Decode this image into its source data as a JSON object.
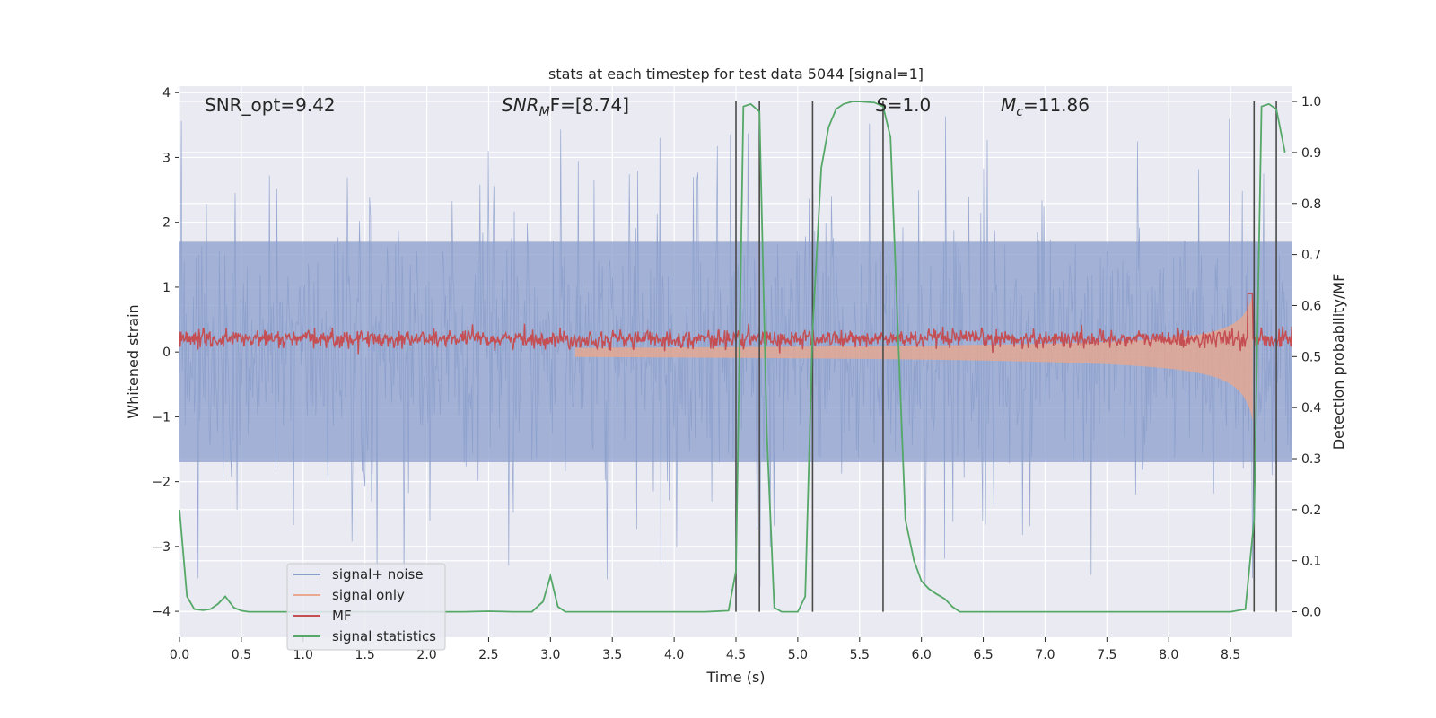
{
  "chart_data": {
    "type": "line",
    "title": "stats at each timestep for test data 5044 [signal=1]",
    "xlabel": "Time (s)",
    "ylabel_left": "Whitened strain",
    "ylabel_right": "Detection probability/MF",
    "xlim": [
      0.0,
      9.0
    ],
    "ylim_left": [
      -4.4,
      4.1
    ],
    "ylim_right": [
      -0.05,
      1.03
    ],
    "x_ticks": [
      0.0,
      0.5,
      1.0,
      1.5,
      2.0,
      2.5,
      3.0,
      3.5,
      4.0,
      4.5,
      5.0,
      5.5,
      6.0,
      6.5,
      7.0,
      7.5,
      8.0,
      8.5
    ],
    "x_tick_labels": [
      "0.0",
      "0.5",
      "1.0",
      "1.5",
      "2.0",
      "2.5",
      "3.0",
      "3.5",
      "4.0",
      "4.5",
      "5.0",
      "5.5",
      "6.0",
      "6.5",
      "7.0",
      "7.5",
      "8.0",
      "8.5"
    ],
    "y_left_ticks": [
      -4,
      -3,
      -2,
      -1,
      0,
      1,
      2,
      3,
      4
    ],
    "y_left_tick_labels": [
      "−4",
      "−3",
      "−2",
      "−1",
      "0",
      "1",
      "2",
      "3",
      "4"
    ],
    "y_right_ticks": [
      0.0,
      0.1,
      0.2,
      0.3,
      0.4,
      0.5,
      0.6,
      0.7,
      0.8,
      0.9,
      1.0
    ],
    "y_right_tick_labels": [
      "0.0",
      "0.1",
      "0.2",
      "0.3",
      "0.4",
      "0.5",
      "0.6",
      "0.7",
      "0.8",
      "0.9",
      "1.0"
    ],
    "annotations": {
      "snr_opt": "SNR_opt=9.42",
      "snr_mf_base": "SNR",
      "snr_mf_sub": "M",
      "snr_mf_rest": "F=[8.74]",
      "s_var": "S",
      "s_rest": "=1.0",
      "mc_var": "M",
      "mc_sub": "c",
      "mc_rest": "=11.86"
    },
    "vertical_lines": [
      4.5,
      4.69,
      5.12,
      5.69,
      8.69,
      8.87
    ],
    "signal_statistics": {
      "x": [
        0.0,
        0.06,
        0.12,
        0.19,
        0.25,
        0.31,
        0.37,
        0.44,
        0.5,
        0.56,
        0.75,
        1.0,
        1.5,
        2.0,
        2.3,
        2.5,
        2.7,
        2.85,
        2.94,
        3.0,
        3.06,
        3.12,
        3.25,
        3.5,
        3.75,
        4.0,
        4.25,
        4.44,
        4.5,
        4.56,
        4.62,
        4.69,
        4.75,
        4.81,
        4.87,
        4.94,
        5.0,
        5.06,
        5.12,
        5.19,
        5.25,
        5.31,
        5.37,
        5.44,
        5.5,
        5.62,
        5.69,
        5.75,
        5.81,
        5.87,
        5.94,
        6.0,
        6.06,
        6.12,
        6.19,
        6.25,
        6.31,
        6.37,
        6.5,
        7.0,
        7.5,
        8.0,
        8.5,
        8.62,
        8.69,
        8.75,
        8.81,
        8.87,
        8.94
      ],
      "y": [
        0.2,
        0.03,
        0.005,
        0.003,
        0.005,
        0.015,
        0.03,
        0.008,
        0.002,
        0.0,
        0.0,
        0.0,
        0.0,
        0.0,
        0.0,
        0.001,
        0.0,
        0.0,
        0.02,
        0.07,
        0.01,
        0.0,
        0.0,
        0.0,
        0.0,
        0.0,
        0.0,
        0.002,
        0.08,
        0.99,
        0.995,
        0.98,
        0.35,
        0.008,
        0.0,
        0.0,
        0.0,
        0.03,
        0.55,
        0.87,
        0.95,
        0.985,
        0.995,
        1.0,
        1.0,
        0.998,
        0.99,
        0.93,
        0.55,
        0.18,
        0.1,
        0.06,
        0.045,
        0.035,
        0.025,
        0.01,
        0.0,
        0.0,
        0.0,
        0.0,
        0.0,
        0.0,
        0.0,
        0.005,
        0.18,
        0.99,
        0.995,
        0.985,
        0.9
      ]
    },
    "series": [
      {
        "name": "signal+ noise",
        "color": "#8a9ecb",
        "description": "whitened strain, noise band spanning roughly -1.7 to 1.7 with spikes up to ±3.7"
      },
      {
        "name": "signal only",
        "color": "#e9a88f",
        "description": "chirp signal growing in amplitude toward 8.7 s, peak about ±1.4"
      },
      {
        "name": "MF",
        "color": "#c44e52",
        "description": "matched filter output around 0.05 to 0.45, spike near 8.65 s"
      },
      {
        "name": "signal statistics",
        "color": "#55a868",
        "description": "detection probability on right axis"
      }
    ],
    "legend": {
      "location": "lower-left",
      "entries": [
        "signal+ noise",
        "signal only",
        "MF",
        "signal statistics"
      ]
    },
    "grid": true
  },
  "colors": {
    "axes_bg": "#eaeaf2",
    "grid": "#ffffff",
    "noise": "#8a9ecb",
    "signal": "#e9a88f",
    "mf": "#c44e52",
    "stat": "#55a868",
    "vline": "#4a4a4a"
  }
}
